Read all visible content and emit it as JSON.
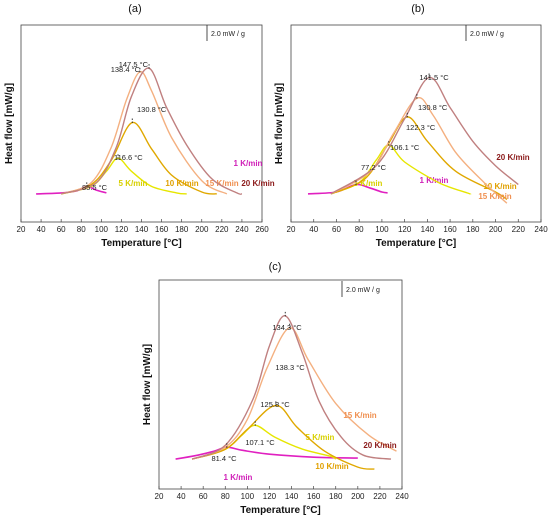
{
  "chart_data": [
    {
      "type": "line",
      "panel_label": "(a)",
      "xlabel": "Temperature [°C]",
      "ylabel": "Heat flow [mW/g]",
      "scale_bar": "2.0 mW / g",
      "xlim": [
        20,
        260
      ],
      "ylim": [
        -1.5,
        9
      ],
      "xticks": [
        20,
        40,
        60,
        80,
        100,
        120,
        140,
        160,
        180,
        200,
        220,
        240,
        260
      ],
      "series": [
        {
          "name": "1 K/min",
          "color": "#e020c0",
          "points": [
            [
              35,
              0
            ],
            [
              60,
              0.05
            ],
            [
              75,
              0.15
            ],
            [
              85.5,
              0.4
            ],
            [
              95,
              0.2
            ],
            [
              105,
              0.05
            ]
          ]
        },
        {
          "name": "5 K/min",
          "color": "#e6e600",
          "points": [
            [
              60,
              0
            ],
            [
              90,
              0.4
            ],
            [
              105,
              1.2
            ],
            [
              116.6,
              1.9
            ],
            [
              130,
              1.2
            ],
            [
              150,
              0.4
            ],
            [
              175,
              0.05
            ],
            [
              185,
              0
            ]
          ]
        },
        {
          "name": "10 K/min",
          "color": "#e0a800",
          "points": [
            [
              60,
              0
            ],
            [
              90,
              0.5
            ],
            [
              110,
              1.8
            ],
            [
              130.8,
              3.8
            ],
            [
              150,
              2.4
            ],
            [
              170,
              1.0
            ],
            [
              200,
              0.1
            ],
            [
              215,
              0
            ]
          ]
        },
        {
          "name": "15 K/min",
          "color": "#f4b080",
          "points": [
            [
              60,
              0
            ],
            [
              90,
              0.6
            ],
            [
              110,
              2.5
            ],
            [
              125,
              5.0
            ],
            [
              138.4,
              6.5
            ],
            [
              150,
              5.5
            ],
            [
              170,
              3.0
            ],
            [
              200,
              0.7
            ],
            [
              225,
              0
            ]
          ]
        },
        {
          "name": "20 K/min",
          "color": "#c08080",
          "points": [
            [
              60,
              0
            ],
            [
              95,
              0.6
            ],
            [
              115,
              2.5
            ],
            [
              130,
              5.2
            ],
            [
              147.5,
              6.7
            ],
            [
              165,
              4.6
            ],
            [
              185,
              2.6
            ],
            [
              210,
              0.8
            ],
            [
              235,
              0.05
            ],
            [
              240,
              0
            ]
          ]
        }
      ],
      "annotations": [
        {
          "text": "147.5 °C",
          "x": 147.5,
          "y": 6.7
        },
        {
          "text": "138.4 °C",
          "x": 138.4,
          "y": 6.5
        },
        {
          "text": "130.8 °C",
          "x": 130.8,
          "y": 3.8
        },
        {
          "text": "116.6 °C",
          "x": 116.6,
          "y": 1.9
        },
        {
          "text": "85.5 °C",
          "x": 85.5,
          "y": 0.4
        }
      ]
    },
    {
      "type": "line",
      "panel_label": "(b)",
      "xlabel": "Temperature [°C]",
      "ylabel": "Heat flow [mW/g]",
      "scale_bar": "2.0 mW / g",
      "xlim": [
        20,
        240
      ],
      "ylim": [
        -1.5,
        9
      ],
      "xticks": [
        20,
        40,
        60,
        80,
        100,
        120,
        140,
        160,
        180,
        200,
        220,
        240
      ],
      "series": [
        {
          "name": "1 K/min",
          "color": "#e020c0",
          "points": [
            [
              35,
              0
            ],
            [
              60,
              0.1
            ],
            [
              77.2,
              0.5
            ],
            [
              90,
              0.3
            ],
            [
              100,
              0.1
            ],
            [
              105,
              0.05
            ]
          ]
        },
        {
          "name": "5 K/min",
          "color": "#e6e600",
          "points": [
            [
              55,
              0
            ],
            [
              80,
              0.6
            ],
            [
              95,
              1.8
            ],
            [
              106.1,
              2.6
            ],
            [
              120,
              1.7
            ],
            [
              150,
              0.6
            ],
            [
              175,
              0.05
            ],
            [
              178,
              0
            ]
          ]
        },
        {
          "name": "10 K/min",
          "color": "#e0a800",
          "points": [
            [
              55,
              0
            ],
            [
              85,
              0.8
            ],
            [
              105,
              2.6
            ],
            [
              122.3,
              4.1
            ],
            [
              140,
              2.8
            ],
            [
              165,
              1.2
            ],
            [
              200,
              0.1
            ],
            [
              210,
              -0.3
            ]
          ]
        },
        {
          "name": "15 K/min",
          "color": "#f4b080",
          "points": [
            [
              55,
              0
            ],
            [
              90,
              1.2
            ],
            [
              110,
              3.2
            ],
            [
              130.8,
              5.1
            ],
            [
              145,
              4.2
            ],
            [
              165,
              2.2
            ],
            [
              190,
              0.6
            ],
            [
              210,
              -0.5
            ]
          ]
        },
        {
          "name": "20 K/min",
          "color": "#c08080",
          "points": [
            [
              55,
              0
            ],
            [
              95,
              1.5
            ],
            [
              120,
              4.0
            ],
            [
              141.5,
              6.2
            ],
            [
              160,
              4.6
            ],
            [
              180,
              2.8
            ],
            [
              200,
              1.5
            ],
            [
              220,
              0.5
            ]
          ]
        }
      ],
      "annotations": [
        {
          "text": "141.5 °C",
          "x": 141.5,
          "y": 6.2
        },
        {
          "text": "130.8 °C",
          "x": 130.8,
          "y": 5.1
        },
        {
          "text": "122.3 °C",
          "x": 122.3,
          "y": 4.1
        },
        {
          "text": "106.1 °C",
          "x": 106.1,
          "y": 2.6
        },
        {
          "text": "77.2 °C",
          "x": 77.2,
          "y": 0.5
        }
      ]
    },
    {
      "type": "line",
      "panel_label": "(c)",
      "xlabel": "Temperature [°C]",
      "ylabel": "Heat flow [mW/g]",
      "scale_bar": "2.0 mW / g",
      "xlim": [
        20,
        240
      ],
      "ylim": [
        -1.5,
        9
      ],
      "xticks": [
        20,
        40,
        60,
        80,
        100,
        120,
        140,
        160,
        180,
        200,
        220,
        240
      ],
      "series": [
        {
          "name": "1 K/min",
          "color": "#e020c0",
          "points": [
            [
              35,
              0
            ],
            [
              55,
              0.2
            ],
            [
              70,
              0.4
            ],
            [
              81.4,
              0.6
            ],
            [
              95,
              0.45
            ],
            [
              120,
              0.25
            ],
            [
              160,
              0.1
            ],
            [
              200,
              0.05
            ]
          ]
        },
        {
          "name": "5 K/min",
          "color": "#e6e600",
          "points": [
            [
              50,
              0
            ],
            [
              80,
              0.5
            ],
            [
              95,
              1.2
            ],
            [
              107.1,
              1.7
            ],
            [
              125,
              1.1
            ],
            [
              150,
              0.5
            ],
            [
              175,
              0.15
            ],
            [
              180,
              0
            ]
          ]
        },
        {
          "name": "10 K/min",
          "color": "#e0a800",
          "points": [
            [
              50,
              0
            ],
            [
              80,
              0.5
            ],
            [
              100,
              1.5
            ],
            [
              125.8,
              2.7
            ],
            [
              145,
              1.6
            ],
            [
              170,
              0.4
            ],
            [
              200,
              -0.4
            ],
            [
              215,
              -0.5
            ]
          ]
        },
        {
          "name": "15 K/min",
          "color": "#f4b080",
          "points": [
            [
              50,
              0
            ],
            [
              80,
              0.6
            ],
            [
              100,
              2.0
            ],
            [
              118,
              4.6
            ],
            [
              138.3,
              6.6
            ],
            [
              155,
              5.0
            ],
            [
              180,
              2.8
            ],
            [
              210,
              1.2
            ],
            [
              235,
              0.4
            ]
          ]
        },
        {
          "name": "20 K/min",
          "color": "#c08080",
          "points": [
            [
              50,
              0
            ],
            [
              80,
              0.7
            ],
            [
              105,
              3.0
            ],
            [
              120,
              5.7
            ],
            [
              134.3,
              7.2
            ],
            [
              150,
              5.3
            ],
            [
              165,
              2.9
            ],
            [
              185,
              1.1
            ],
            [
              205,
              0.2
            ],
            [
              230,
              0
            ]
          ]
        }
      ],
      "annotations": [
        {
          "text": "134.3 °C",
          "x": 134.3,
          "y": 7.2
        },
        {
          "text": "138.3 °C",
          "x": 138.3,
          "y": 6.6
        },
        {
          "text": "125.8 °C",
          "x": 125.8,
          "y": 2.7
        },
        {
          "text": "107.1 °C",
          "x": 107.1,
          "y": 1.7
        },
        {
          "text": "81.4 °C",
          "x": 81.4,
          "y": 0.6
        }
      ]
    }
  ]
}
